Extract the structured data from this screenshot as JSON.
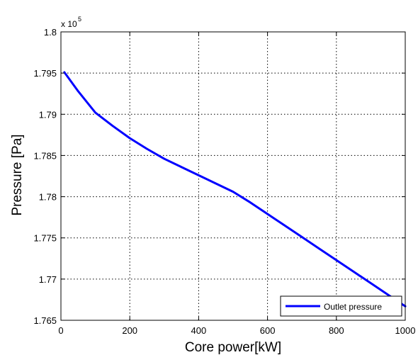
{
  "chart_data": {
    "type": "line",
    "title": "",
    "xlabel": "Core power[kW]",
    "ylabel": "Pressure [Pa]",
    "y_exponent_label": "x 10",
    "y_exponent_power": "5",
    "xlim": [
      0,
      1000
    ],
    "ylim": [
      1.765,
      1.8
    ],
    "x_ticks": [
      0,
      200,
      400,
      600,
      800,
      1000
    ],
    "x_tick_labels": [
      "0",
      "200",
      "400",
      "600",
      "800",
      "1000"
    ],
    "y_ticks": [
      1.765,
      1.77,
      1.775,
      1.78,
      1.785,
      1.79,
      1.795,
      1.8
    ],
    "y_tick_labels": [
      "1.765",
      "1.77",
      "1.775",
      "1.78",
      "1.785",
      "1.79",
      "1.795",
      "1.8"
    ],
    "grid": true,
    "legend_position": "bottom-right",
    "series": [
      {
        "name": "Outlet pressure",
        "color": "#0000ff",
        "x": [
          10,
          50,
          100,
          150,
          200,
          250,
          300,
          350,
          400,
          450,
          500,
          550,
          600,
          650,
          700,
          750,
          800,
          850,
          900,
          950,
          1000
        ],
        "y": [
          1.7951,
          1.7928,
          1.7902,
          1.7886,
          1.7871,
          1.7858,
          1.7846,
          1.7836,
          1.7826,
          1.7816,
          1.7806,
          1.7793,
          1.7779,
          1.7765,
          1.7751,
          1.7737,
          1.7723,
          1.7709,
          1.7695,
          1.7681,
          1.7667
        ]
      }
    ]
  }
}
